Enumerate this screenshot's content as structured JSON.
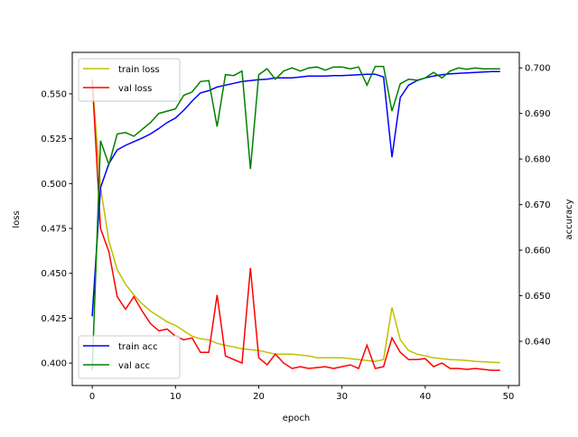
{
  "chart_data": {
    "type": "line",
    "title": "",
    "xlabel": "epoch",
    "ylabel": "loss",
    "y2label": "accuracy",
    "xlim": [
      -2.4,
      51.3
    ],
    "ylim": [
      0.3875,
      0.5731
    ],
    "y2lim": [
      0.6303,
      0.7034
    ],
    "xticks": [
      0,
      10,
      20,
      30,
      40,
      50
    ],
    "xtick_labels": [
      "0",
      "10",
      "20",
      "30",
      "40",
      "50"
    ],
    "yticks": [
      0.4,
      0.425,
      0.45,
      0.475,
      0.5,
      0.525,
      0.55
    ],
    "ytick_labels": [
      "0.400",
      "0.425",
      "0.450",
      "0.475",
      "0.500",
      "0.525",
      "0.550"
    ],
    "y2ticks": [
      0.64,
      0.65,
      0.66,
      0.67,
      0.68,
      0.69,
      0.7
    ],
    "y2tick_labels": [
      "0.640",
      "0.650",
      "0.660",
      "0.670",
      "0.680",
      "0.690",
      "0.700"
    ],
    "grid": false,
    "x": [
      0,
      1,
      2,
      3,
      4,
      5,
      6,
      7,
      8,
      9,
      10,
      11,
      12,
      13,
      14,
      15,
      16,
      17,
      18,
      19,
      20,
      21,
      22,
      23,
      24,
      25,
      26,
      27,
      28,
      29,
      30,
      31,
      32,
      33,
      34,
      35,
      36,
      37,
      38,
      39,
      40,
      41,
      42,
      43,
      44,
      45,
      46,
      47,
      48,
      49
    ],
    "series": [
      {
        "name": "train loss",
        "axis": "left",
        "color": "#bfbf00",
        "legend": "upper-left",
        "values": [
          0.557,
          0.498,
          0.468,
          0.452,
          0.444,
          0.438,
          0.433,
          0.429,
          0.426,
          0.423,
          0.421,
          0.418,
          0.415,
          0.4135,
          0.413,
          0.411,
          0.41,
          0.409,
          0.408,
          0.4075,
          0.407,
          0.406,
          0.405,
          0.405,
          0.405,
          0.4045,
          0.404,
          0.403,
          0.403,
          0.403,
          0.403,
          0.4025,
          0.402,
          0.4015,
          0.401,
          0.402,
          0.431,
          0.413,
          0.407,
          0.405,
          0.404,
          0.403,
          0.4025,
          0.402,
          0.4018,
          0.4015,
          0.401,
          0.4008,
          0.4005,
          0.4003
        ]
      },
      {
        "name": "val loss",
        "axis": "left",
        "color": "#ff0000",
        "legend": "upper-left",
        "values": [
          0.558,
          0.475,
          0.462,
          0.437,
          0.43,
          0.437,
          0.429,
          0.422,
          0.418,
          0.419,
          0.415,
          0.413,
          0.414,
          0.406,
          0.406,
          0.438,
          0.404,
          0.402,
          0.4,
          0.453,
          0.403,
          0.399,
          0.405,
          0.4,
          0.397,
          0.398,
          0.397,
          0.3975,
          0.398,
          0.397,
          0.398,
          0.399,
          0.397,
          0.41,
          0.397,
          0.398,
          0.414,
          0.406,
          0.402,
          0.402,
          0.4025,
          0.398,
          0.4,
          0.397,
          0.397,
          0.3965,
          0.397,
          0.3965,
          0.396,
          0.396
        ]
      },
      {
        "name": "train acc",
        "axis": "right",
        "color": "#0000ff",
        "legend": "lower-left",
        "values": [
          0.6455,
          0.6737,
          0.679,
          0.682,
          0.683,
          0.6838,
          0.6846,
          0.6855,
          0.6867,
          0.688,
          0.689,
          0.6907,
          0.6927,
          0.6945,
          0.695,
          0.6958,
          0.6962,
          0.6966,
          0.697,
          0.6972,
          0.6974,
          0.6975,
          0.6978,
          0.6978,
          0.6978,
          0.698,
          0.6982,
          0.6982,
          0.6982,
          0.6983,
          0.6983,
          0.6984,
          0.6985,
          0.6986,
          0.6986,
          0.698,
          0.6804,
          0.6935,
          0.6962,
          0.6972,
          0.6978,
          0.6982,
          0.6985,
          0.6987,
          0.6988,
          0.6989,
          0.699,
          0.6991,
          0.6992,
          0.6992
        ]
      },
      {
        "name": "val acc",
        "axis": "right",
        "color": "#008000",
        "legend": "lower-left",
        "values": [
          0.6337,
          0.684,
          0.6788,
          0.6855,
          0.6858,
          0.685,
          0.6865,
          0.688,
          0.69,
          0.6905,
          0.691,
          0.694,
          0.6947,
          0.697,
          0.6972,
          0.6871,
          0.6985,
          0.6983,
          0.6993,
          0.6778,
          0.6985,
          0.6998,
          0.6975,
          0.6993,
          0.7,
          0.6993,
          0.7,
          0.7002,
          0.6995,
          0.7002,
          0.7002,
          0.6998,
          0.7002,
          0.6962,
          0.7003,
          0.7003,
          0.6905,
          0.6965,
          0.6975,
          0.6973,
          0.6978,
          0.699,
          0.6978,
          0.6993,
          0.7,
          0.6997,
          0.7,
          0.6998,
          0.6998,
          0.6998
        ]
      }
    ]
  }
}
